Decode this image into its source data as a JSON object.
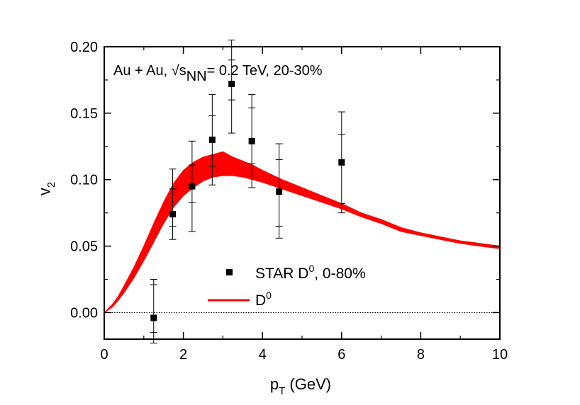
{
  "chart_data": {
    "type": "scatter",
    "title": "",
    "xlabel": {
      "main": "p",
      "sub": "T",
      "rest": " (GeV)"
    },
    "ylabel": {
      "main": "v",
      "sub": "2"
    },
    "xlim": [
      0,
      10
    ],
    "ylim": [
      -0.02,
      0.2
    ],
    "x_ticks": [
      0,
      2,
      4,
      6,
      8,
      10
    ],
    "x_tick_labels": [
      "0",
      "2",
      "4",
      "6",
      "8",
      "10"
    ],
    "y_ticks": [
      0.0,
      0.05,
      0.1,
      0.15,
      0.2
    ],
    "y_tick_labels": [
      "0.00",
      "0.05",
      "0.10",
      "0.15",
      "0.20"
    ],
    "annotation": {
      "prefix": "Au + Au, √s",
      "sub": "NN",
      "suffix": "= 0.2 TeV, 20-30%"
    },
    "zero_line": true,
    "legend_position": "lower-center",
    "legend": [
      {
        "series": "star",
        "main": "STAR D",
        "sup": "0",
        "rest": ", 0-80%"
      },
      {
        "series": "band",
        "main": "D",
        "sup": "0",
        "rest": ""
      }
    ],
    "series": [
      {
        "id": "star",
        "kind": "points",
        "color": "#000000",
        "points": [
          {
            "x": 1.25,
            "y": -0.004,
            "stat": [
              -0.023,
              0.025
            ],
            "sys": [
              -0.015,
              0.021
            ]
          },
          {
            "x": 1.73,
            "y": 0.074,
            "stat": [
              0.055,
              0.108
            ],
            "sys": [
              0.065,
              0.093
            ]
          },
          {
            "x": 2.22,
            "y": 0.095,
            "stat": [
              0.061,
              0.129
            ],
            "sys": [
              0.083,
              0.111
            ]
          },
          {
            "x": 2.73,
            "y": 0.13,
            "stat": [
              0.096,
              0.164
            ],
            "sys": [
              0.11,
              0.148
            ]
          },
          {
            "x": 3.22,
            "y": 0.172,
            "stat": [
              0.135,
              0.205
            ],
            "sys": [
              0.16,
              0.19
            ]
          },
          {
            "x": 3.73,
            "y": 0.129,
            "stat": [
              0.094,
              0.164
            ],
            "sys": [
              0.112,
              0.154
            ]
          },
          {
            "x": 4.42,
            "y": 0.091,
            "stat": [
              0.056,
              0.127
            ],
            "sys": [
              0.065,
              0.115
            ]
          },
          {
            "x": 6.0,
            "y": 0.113,
            "stat": [
              0.075,
              0.151
            ],
            "sys": [
              0.082,
              0.134
            ]
          }
        ]
      },
      {
        "id": "band",
        "kind": "band",
        "color": "#ff0000",
        "x": [
          0.0,
          0.1,
          0.2,
          0.35,
          0.5,
          0.75,
          1.0,
          1.25,
          1.5,
          1.75,
          2.0,
          2.25,
          2.5,
          2.75,
          3.0,
          3.25,
          3.5,
          3.75,
          4.0,
          4.5,
          5.0,
          5.5,
          6.0,
          6.5,
          7.0,
          7.5,
          8.0,
          8.5,
          9.0,
          9.5,
          10.0
        ],
        "lower": [
          0.0,
          0.002,
          0.004,
          0.009,
          0.015,
          0.026,
          0.039,
          0.053,
          0.067,
          0.079,
          0.088,
          0.094,
          0.099,
          0.102,
          0.103,
          0.103,
          0.102,
          0.1,
          0.098,
          0.093,
          0.088,
          0.083,
          0.078,
          0.072,
          0.067,
          0.061,
          0.058,
          0.055,
          0.052,
          0.05,
          0.048
        ],
        "upper": [
          0.0,
          0.003,
          0.006,
          0.012,
          0.02,
          0.034,
          0.05,
          0.067,
          0.083,
          0.097,
          0.107,
          0.113,
          0.117,
          0.119,
          0.121,
          0.117,
          0.114,
          0.111,
          0.107,
          0.1,
          0.094,
          0.088,
          0.082,
          0.075,
          0.07,
          0.064,
          0.06,
          0.057,
          0.054,
          0.052,
          0.05
        ]
      }
    ]
  }
}
